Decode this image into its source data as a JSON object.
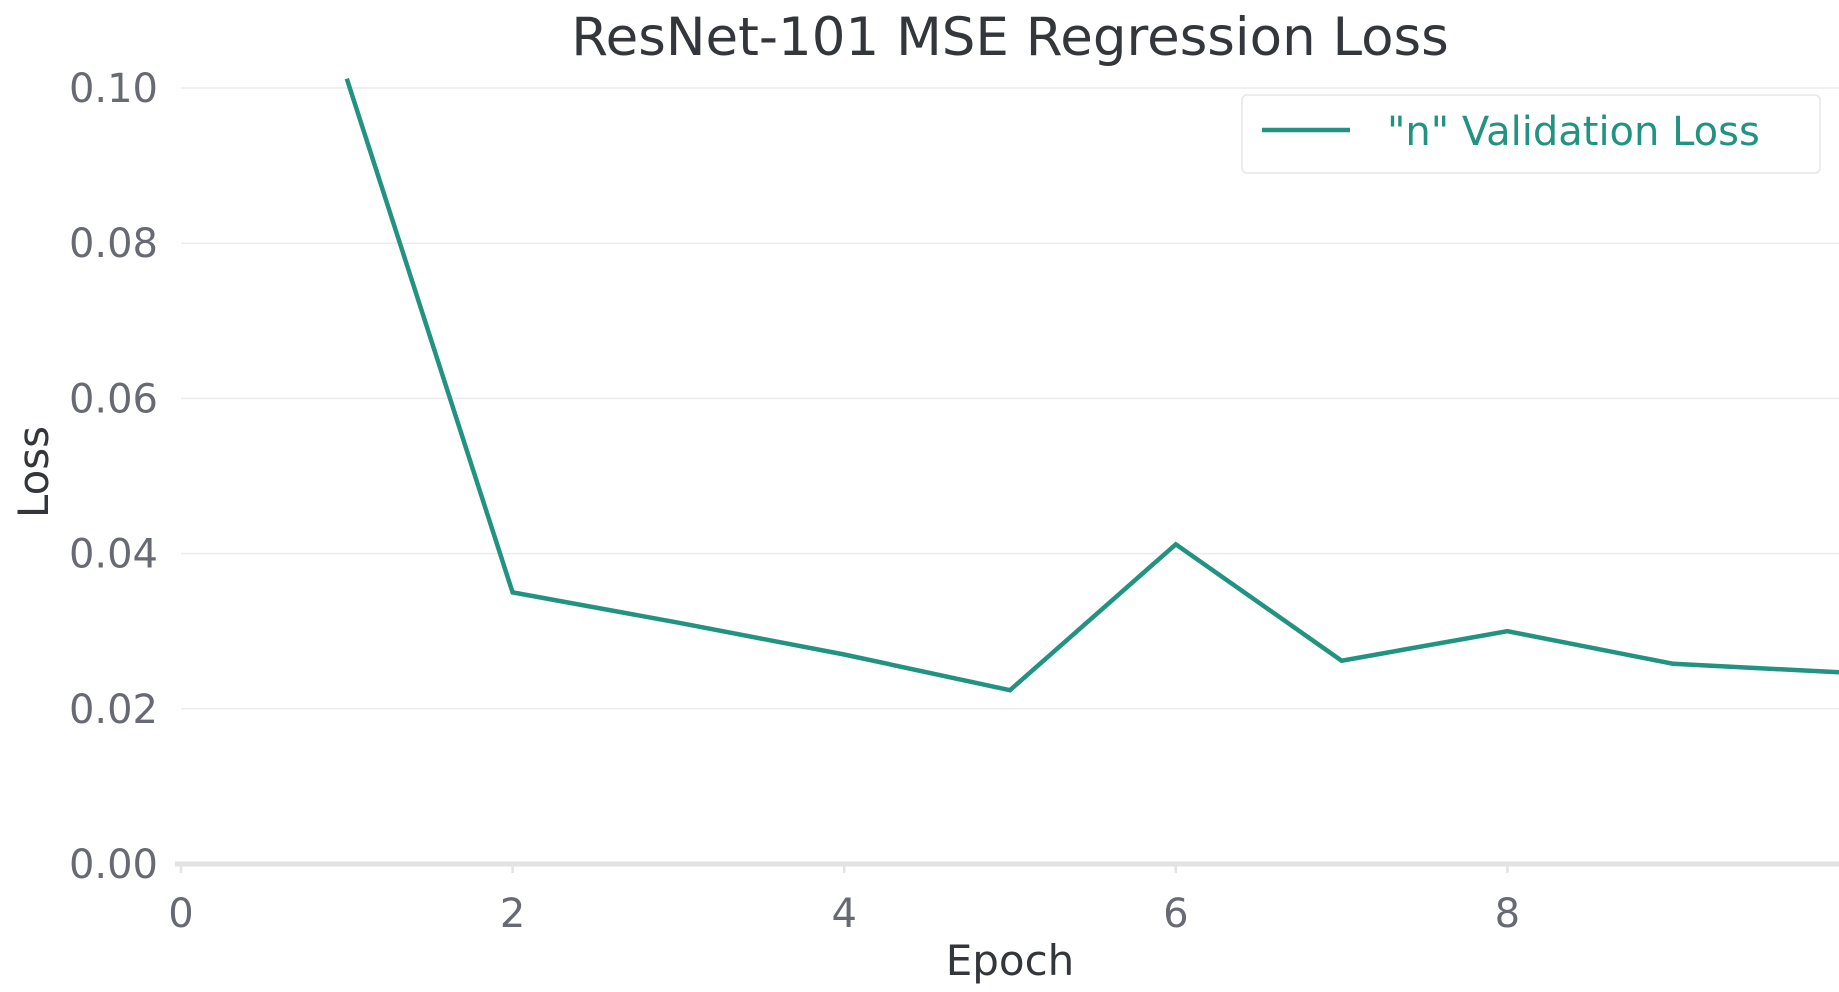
{
  "chart_data": {
    "type": "line",
    "title": "ResNet-101 MSE Regression Loss",
    "xlabel": "Epoch",
    "ylabel": "Loss",
    "xlim": [
      0,
      10
    ],
    "ylim": [
      0,
      0.1
    ],
    "x_ticks": [
      "0",
      "2",
      "4",
      "6",
      "8"
    ],
    "y_ticks": [
      "0.00",
      "0.02",
      "0.04",
      "0.06",
      "0.08",
      "0.10"
    ],
    "grid": "horizontal",
    "legend_position": "top-right",
    "series": [
      {
        "name": "\"n\" Validation Loss",
        "color": "#229281",
        "x": [
          1,
          2,
          3,
          4,
          5,
          6,
          7,
          8,
          9,
          10
        ],
        "y": [
          0.1012,
          0.035,
          0.0311,
          0.027,
          0.0224,
          0.0412,
          0.0262,
          0.03,
          0.0258,
          0.0247
        ]
      }
    ]
  }
}
